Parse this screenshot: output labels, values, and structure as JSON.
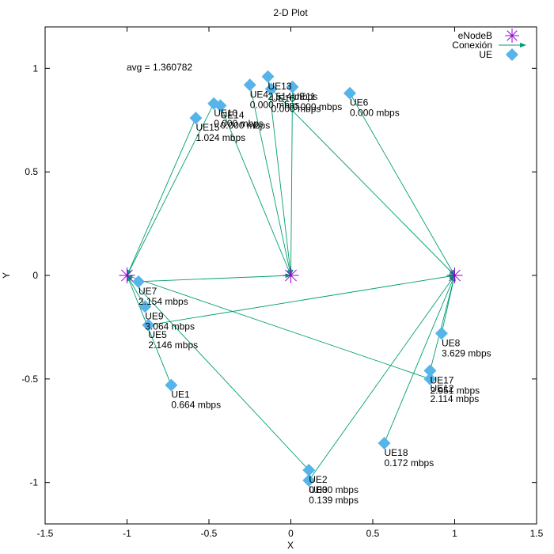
{
  "chart_data": {
    "type": "scatter",
    "title": "2-D Plot",
    "xlabel": "X",
    "ylabel": "Y",
    "xlim": [
      -1.5,
      1.5
    ],
    "ylim": [
      -1.2,
      1.2
    ],
    "x_ticks": [
      -1.5,
      -1,
      -0.5,
      0,
      0.5,
      1,
      1.5
    ],
    "x_tick_labels": [
      "-1.5",
      "-1",
      "-0.5",
      "0",
      "0.5",
      "1",
      "1.5"
    ],
    "y_ticks": [
      -1,
      -0.5,
      0,
      0.5,
      1
    ],
    "y_tick_labels": [
      "-1",
      "-0.5",
      "0",
      "0.5",
      "1"
    ],
    "grid": false,
    "legend_position": "top-right",
    "legend": [
      {
        "label": "eNodeB",
        "marker": "asterisk",
        "color": "#9400d3"
      },
      {
        "label": "Conexión",
        "marker": "arrow",
        "color": "#009e73"
      },
      {
        "label": "UE",
        "marker": "diamond",
        "color": "#56b4e9"
      }
    ],
    "annotation": "avg = 1.360782",
    "enodebs": [
      {
        "x": -1.0,
        "y": 0.0
      },
      {
        "x": 0.0,
        "y": 0.0
      },
      {
        "x": 1.0,
        "y": 0.0
      }
    ],
    "ues": [
      {
        "name": "UE1",
        "x": -0.73,
        "y": -0.53,
        "rate": "0.664 mbps",
        "enb": 0
      },
      {
        "name": "UE2",
        "x": 0.11,
        "y": -0.94,
        "rate": "0.000 mbps",
        "enb": 0
      },
      {
        "name": "UE3",
        "x": 0.11,
        "y": -0.99,
        "rate": "0.139 mbps",
        "enb": 2
      },
      {
        "name": "UE4",
        "x": -0.25,
        "y": 0.92,
        "rate": "0.000 mbps",
        "enb": 1
      },
      {
        "name": "UE5",
        "x": -0.87,
        "y": -0.24,
        "rate": "2.146 mbps",
        "enb": 2
      },
      {
        "name": "UE6",
        "x": 0.36,
        "y": 0.88,
        "rate": "0.000 mbps",
        "enb": 2
      },
      {
        "name": "UE7",
        "x": -0.93,
        "y": -0.03,
        "rate": "2.154 mbps",
        "enb": 1
      },
      {
        "name": "UE8",
        "x": 0.92,
        "y": -0.28,
        "rate": "3.629 mbps",
        "enb": 2
      },
      {
        "name": "UE9",
        "x": -0.89,
        "y": -0.15,
        "rate": "3.064 mbps",
        "enb": 0
      },
      {
        "name": "UE10",
        "x": -0.47,
        "y": 0.83,
        "rate": "0.000 mbps",
        "enb": 0
      },
      {
        "name": "UE11",
        "x": 0.01,
        "y": 0.91,
        "rate": "0.000 mbps",
        "enb": 1
      },
      {
        "name": "UE12",
        "x": 0.85,
        "y": -0.5,
        "rate": "2.114 mbps",
        "enb": 0
      },
      {
        "name": "UE13",
        "x": -0.14,
        "y": 0.96,
        "rate": "2.514 mbps",
        "enb": 1
      },
      {
        "name": "UE14",
        "x": -0.43,
        "y": 0.82,
        "rate": "0.000 mbps",
        "enb": 1
      },
      {
        "name": "UE15",
        "x": -0.58,
        "y": 0.76,
        "rate": "1.024 mbps",
        "enb": 0
      },
      {
        "name": "UE16",
        "x": -0.12,
        "y": 0.9,
        "rate": "0.000 mbps",
        "enb": 2
      },
      {
        "name": "UE17",
        "x": 0.85,
        "y": -0.46,
        "rate": "2.951 mbps",
        "enb": 2
      },
      {
        "name": "UE18",
        "x": 0.57,
        "y": -0.81,
        "rate": "0.172 mbps",
        "enb": 2
      }
    ]
  }
}
